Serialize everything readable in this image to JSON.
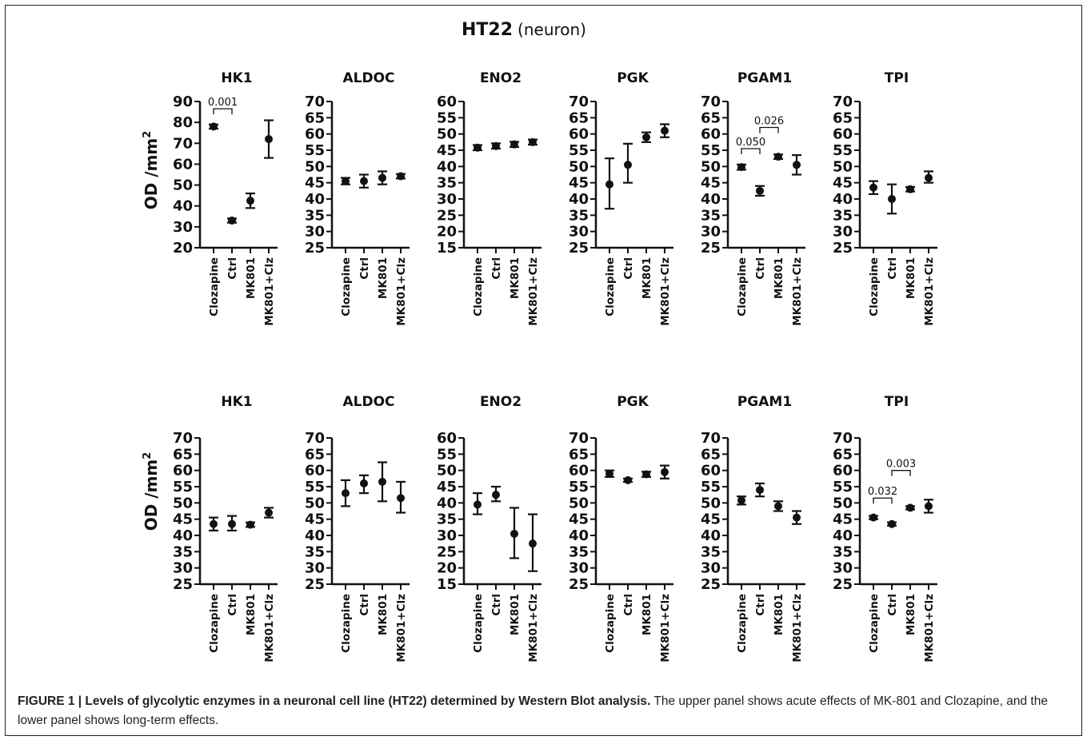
{
  "figure": {
    "title": "HT22",
    "title_suffix": "(neuron)",
    "ylabel": "OD /mm",
    "ylabel_sup": "2"
  },
  "caption": {
    "label": "FIGURE 1 | Levels of glycolytic enzymes in a neuronal cell line (HT22) determined by Western Blot analysis.",
    "text": " The upper panel shows acute effects of MK-801 and Clozapine, and the lower panel shows long-term effects."
  },
  "chart_data": [
    {
      "type": "scatter",
      "row": 1,
      "title": "HK1",
      "categories": [
        "Clozapine",
        "Ctrl",
        "MK801",
        "MK801+Clz"
      ],
      "ylim": [
        20,
        90
      ],
      "ticks": [
        20,
        30,
        40,
        50,
        60,
        70,
        80,
        90
      ],
      "means": [
        78,
        33,
        42.5,
        72
      ],
      "errors": [
        [
          77,
          79
        ],
        [
          32,
          34
        ],
        [
          39,
          46
        ],
        [
          63,
          81
        ]
      ],
      "brackets": [
        {
          "from": 0,
          "to": 1,
          "label": "0.001",
          "y": 86.5
        }
      ]
    },
    {
      "type": "scatter",
      "row": 1,
      "title": "ALDOC",
      "categories": [
        "Clozapine",
        "Ctrl",
        "MK801",
        "MK801+Clz"
      ],
      "ylim": [
        25,
        70
      ],
      "ticks": [
        25,
        30,
        35,
        40,
        45,
        50,
        55,
        60,
        65,
        70
      ],
      "means": [
        45.5,
        45.5,
        46.5,
        47
      ],
      "errors": [
        [
          44.5,
          46.5
        ],
        [
          43.5,
          47.5
        ],
        [
          44.5,
          48.5
        ],
        [
          46.3,
          47.7
        ]
      ],
      "brackets": []
    },
    {
      "type": "scatter",
      "row": 1,
      "title": "ENO2",
      "categories": [
        "Clozapine",
        "Ctrl",
        "MK801",
        "MK801+Clz"
      ],
      "ylim": [
        15,
        60
      ],
      "ticks": [
        15,
        20,
        25,
        30,
        35,
        40,
        45,
        50,
        55,
        60
      ],
      "means": [
        45.8,
        46.3,
        46.8,
        47.5
      ],
      "errors": [
        [
          45,
          46.6
        ],
        [
          45.5,
          47.1
        ],
        [
          46,
          47.6
        ],
        [
          46.7,
          48.3
        ]
      ],
      "brackets": []
    },
    {
      "type": "scatter",
      "row": 1,
      "title": "PGK",
      "categories": [
        "Clozapine",
        "Ctrl",
        "MK801",
        "MK801+Clz"
      ],
      "ylim": [
        25,
        70
      ],
      "ticks": [
        25,
        30,
        35,
        40,
        45,
        50,
        55,
        60,
        65,
        70
      ],
      "means": [
        44.5,
        50.5,
        59,
        61
      ],
      "errors": [
        [
          37,
          52.5
        ],
        [
          45,
          57
        ],
        [
          57.5,
          60.5
        ],
        [
          59,
          63
        ]
      ],
      "brackets": []
    },
    {
      "type": "scatter",
      "row": 1,
      "title": "PGAM1",
      "categories": [
        "Clozapine",
        "Ctrl",
        "MK801",
        "MK801+Clz"
      ],
      "ylim": [
        25,
        70
      ],
      "ticks": [
        25,
        30,
        35,
        40,
        45,
        50,
        55,
        60,
        65,
        70
      ],
      "means": [
        49.8,
        42.5,
        53,
        50.5
      ],
      "errors": [
        [
          49,
          50.6
        ],
        [
          41,
          44
        ],
        [
          52.3,
          53.7
        ],
        [
          47.5,
          53.5
        ]
      ],
      "brackets": [
        {
          "from": 0,
          "to": 1,
          "label": "0.050",
          "y": 55.5
        },
        {
          "from": 1,
          "to": 2,
          "label": "0.026",
          "y": 62
        }
      ]
    },
    {
      "type": "scatter",
      "row": 1,
      "title": "TPI",
      "categories": [
        "Clozapine",
        "Ctrl",
        "MK801",
        "MK801+Clz"
      ],
      "ylim": [
        25,
        70
      ],
      "ticks": [
        25,
        30,
        35,
        40,
        45,
        50,
        55,
        60,
        65,
        70
      ],
      "means": [
        43.5,
        40,
        43,
        46.5
      ],
      "errors": [
        [
          41.5,
          45.5
        ],
        [
          35.5,
          44.5
        ],
        [
          42.3,
          43.7
        ],
        [
          45,
          48.5
        ]
      ],
      "brackets": []
    },
    {
      "type": "scatter",
      "row": 2,
      "title": "HK1",
      "categories": [
        "Clozapine",
        "Ctrl",
        "MK801",
        "MK801+Clz"
      ],
      "ylim": [
        25,
        70
      ],
      "ticks": [
        25,
        30,
        35,
        40,
        45,
        50,
        55,
        60,
        65,
        70
      ],
      "means": [
        43.5,
        43.5,
        43.3,
        47
      ],
      "errors": [
        [
          41.5,
          45.5
        ],
        [
          41.5,
          46
        ],
        [
          42.6,
          44
        ],
        [
          45.5,
          48.5
        ]
      ],
      "brackets": []
    },
    {
      "type": "scatter",
      "row": 2,
      "title": "ALDOC",
      "categories": [
        "Clozapine",
        "Ctrl",
        "MK801",
        "MK801+Clz"
      ],
      "ylim": [
        25,
        70
      ],
      "ticks": [
        25,
        30,
        35,
        40,
        45,
        50,
        55,
        60,
        65,
        70
      ],
      "means": [
        53,
        56,
        56.5,
        51.5
      ],
      "errors": [
        [
          49,
          57
        ],
        [
          53,
          58.5
        ],
        [
          50.5,
          62.5
        ],
        [
          47,
          56.5
        ]
      ],
      "brackets": []
    },
    {
      "type": "scatter",
      "row": 2,
      "title": "ENO2",
      "categories": [
        "Clozapine",
        "Ctrl",
        "MK801",
        "MK801+Clz"
      ],
      "ylim": [
        15,
        60
      ],
      "ticks": [
        15,
        20,
        25,
        30,
        35,
        40,
        45,
        50,
        55,
        60
      ],
      "means": [
        39.5,
        42.5,
        30.5,
        27.5
      ],
      "errors": [
        [
          36.5,
          43
        ],
        [
          40.5,
          45
        ],
        [
          23,
          38.5
        ],
        [
          19,
          36.5
        ]
      ],
      "brackets": []
    },
    {
      "type": "scatter",
      "row": 2,
      "title": "PGK",
      "categories": [
        "Clozapine",
        "Ctrl",
        "MK801",
        "MK801+Clz"
      ],
      "ylim": [
        25,
        70
      ],
      "ticks": [
        25,
        30,
        35,
        40,
        45,
        50,
        55,
        60,
        65,
        70
      ],
      "means": [
        59,
        57,
        58.8,
        59.5
      ],
      "errors": [
        [
          58,
          60
        ],
        [
          56.5,
          57.5
        ],
        [
          58,
          59.6
        ],
        [
          57.5,
          61.5
        ]
      ],
      "brackets": []
    },
    {
      "type": "scatter",
      "row": 2,
      "title": "PGAM1",
      "categories": [
        "Clozapine",
        "Ctrl",
        "MK801",
        "MK801+Clz"
      ],
      "ylim": [
        25,
        70
      ],
      "ticks": [
        25,
        30,
        35,
        40,
        45,
        50,
        55,
        60,
        65,
        70
      ],
      "means": [
        50.8,
        54,
        49,
        45.5
      ],
      "errors": [
        [
          49.5,
          52
        ],
        [
          52,
          56
        ],
        [
          47.5,
          50.5
        ],
        [
          43.5,
          47.5
        ]
      ],
      "brackets": []
    },
    {
      "type": "scatter",
      "row": 2,
      "title": "TPI",
      "categories": [
        "Clozapine",
        "Ctrl",
        "MK801",
        "MK801+Clz"
      ],
      "ylim": [
        25,
        70
      ],
      "ticks": [
        25,
        30,
        35,
        40,
        45,
        50,
        55,
        60,
        65,
        70
      ],
      "means": [
        45.5,
        43.5,
        48.5,
        49
      ],
      "errors": [
        [
          45,
          46
        ],
        [
          43,
          44
        ],
        [
          48,
          49
        ],
        [
          47,
          51
        ]
      ],
      "brackets": [
        {
          "from": 0,
          "to": 1,
          "label": "0.032",
          "y": 51.5
        },
        {
          "from": 1,
          "to": 2,
          "label": "0.003",
          "y": 60
        }
      ]
    }
  ]
}
